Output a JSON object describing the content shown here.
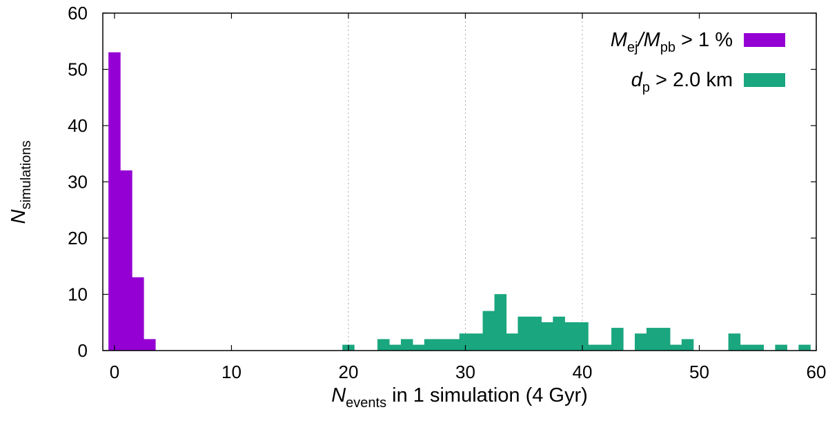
{
  "chart_data": {
    "type": "bar",
    "title": "",
    "xlabel": {
      "main": "N",
      "sub": "events",
      "rest": " in 1 simulation (4 Gyr)"
    },
    "ylabel": {
      "main": "N",
      "sub": "simulations"
    },
    "xlim": [
      -1,
      60
    ],
    "ylim": [
      0,
      60
    ],
    "xticks": [
      0,
      10,
      20,
      30,
      40,
      50,
      60
    ],
    "yticks": [
      0,
      10,
      20,
      30,
      40,
      50,
      60
    ],
    "grid": "dotted vertical lines at 20, 30, 40",
    "legend_position": "top-right",
    "series": [
      {
        "name": "Mej/Mpb > 1 %",
        "legend": {
          "a": "M",
          "a_sub": "ej",
          "b": "/M",
          "b_sub": "pb",
          "rest": " > 1 %"
        },
        "color": "#9400d3",
        "x": [
          0,
          1,
          2,
          3
        ],
        "values": [
          53,
          32,
          13,
          2
        ]
      },
      {
        "name": "dp > 2.0 km",
        "legend": {
          "a": "d",
          "a_sub": "p",
          "rest": " > 2.0 km"
        },
        "color": "#1aa67f",
        "x": [
          20,
          23,
          24,
          25,
          26,
          27,
          28,
          29,
          30,
          31,
          32,
          33,
          34,
          35,
          36,
          37,
          38,
          39,
          40,
          41,
          42,
          43,
          45,
          46,
          47,
          48,
          49,
          53,
          54,
          55,
          57,
          59
        ],
        "values": [
          1,
          2,
          1,
          2,
          1,
          2,
          2,
          2,
          3,
          3,
          7,
          10,
          3,
          6,
          6,
          5,
          6,
          5,
          5,
          1,
          1,
          4,
          3,
          4,
          4,
          1,
          2,
          3,
          1,
          1,
          1,
          1
        ]
      }
    ]
  }
}
